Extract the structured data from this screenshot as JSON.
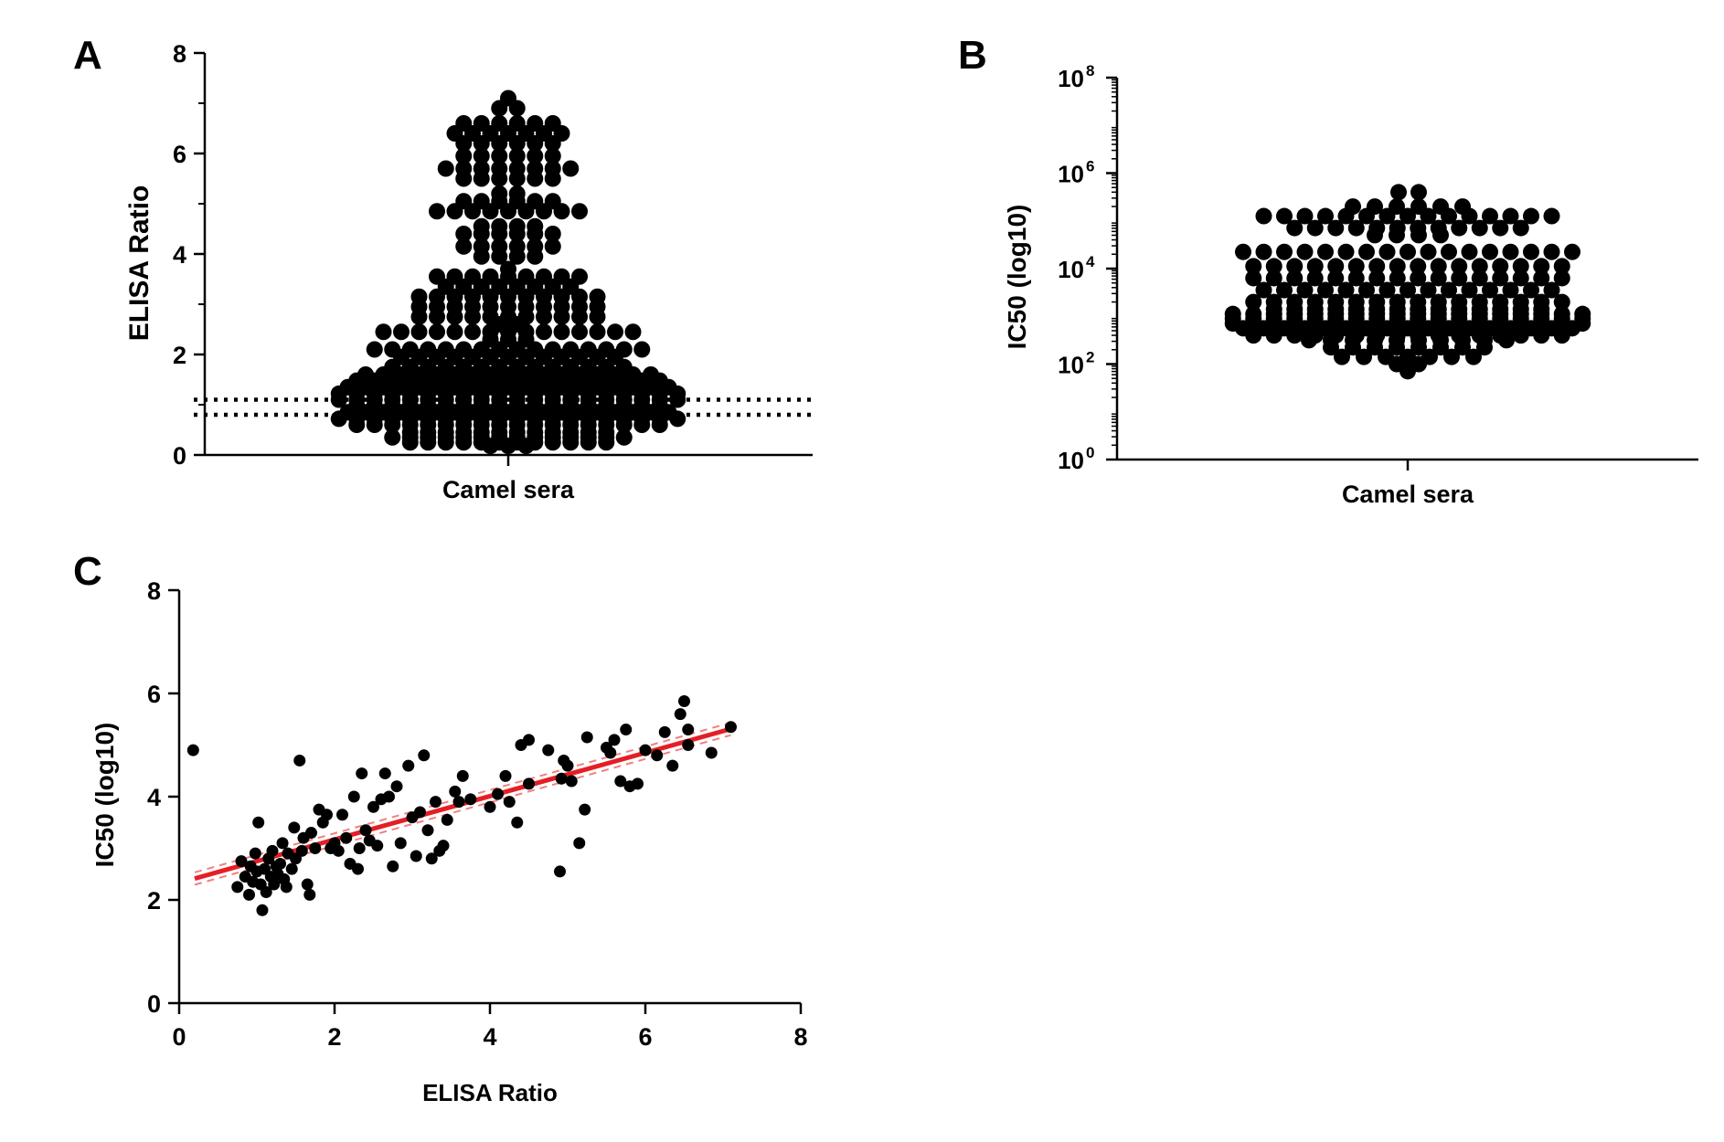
{
  "chart_data": [
    {
      "panel": "A",
      "type": "scatter",
      "subtype": "beeswarm",
      "xlabel": "Camel sera",
      "ylabel": "ELISA Ratio",
      "ylim": [
        0,
        8
      ],
      "yticks": [
        "0",
        "2",
        "4",
        "6",
        "8"
      ],
      "cutoffs": [
        0.8,
        1.1
      ],
      "rows": [
        {
          "y": 7.1,
          "n": 1
        },
        {
          "y": 6.9,
          "n": 2
        },
        {
          "y": 6.6,
          "n": 6
        },
        {
          "y": 6.4,
          "n": 7
        },
        {
          "y": 6.2,
          "n": 6
        },
        {
          "y": 5.95,
          "n": 6
        },
        {
          "y": 5.7,
          "n": 8
        },
        {
          "y": 5.5,
          "n": 6
        },
        {
          "y": 5.2,
          "n": 2
        },
        {
          "y": 5.05,
          "n": 6
        },
        {
          "y": 4.85,
          "n": 9
        },
        {
          "y": 4.55,
          "n": 4
        },
        {
          "y": 4.4,
          "n": 6
        },
        {
          "y": 4.15,
          "n": 6
        },
        {
          "y": 3.95,
          "n": 4
        },
        {
          "y": 3.7,
          "n": 1
        },
        {
          "y": 3.55,
          "n": 9
        },
        {
          "y": 3.35,
          "n": 8
        },
        {
          "y": 3.15,
          "n": 11
        },
        {
          "y": 2.95,
          "n": 11
        },
        {
          "y": 2.75,
          "n": 11
        },
        {
          "y": 2.6,
          "n": 2
        },
        {
          "y": 2.45,
          "n": 15
        },
        {
          "y": 2.3,
          "n": 3
        },
        {
          "y": 2.1,
          "n": 16
        },
        {
          "y": 1.95,
          "n": 13
        },
        {
          "y": 1.75,
          "n": 14
        },
        {
          "y": 1.6,
          "n": 17
        },
        {
          "y": 1.48,
          "n": 18
        },
        {
          "y": 1.35,
          "n": 19
        },
        {
          "y": 1.22,
          "n": 20
        },
        {
          "y": 1.1,
          "n": 20
        },
        {
          "y": 0.98,
          "n": 18
        },
        {
          "y": 0.85,
          "n": 19
        },
        {
          "y": 0.72,
          "n": 20
        },
        {
          "y": 0.6,
          "n": 18
        },
        {
          "y": 0.45,
          "n": 12
        },
        {
          "y": 0.35,
          "n": 14
        },
        {
          "y": 0.25,
          "n": 12
        },
        {
          "y": 0.18,
          "n": 3
        }
      ]
    },
    {
      "panel": "B",
      "type": "scatter",
      "subtype": "beeswarm",
      "xlabel": "Camel sera",
      "ylabel": "IC50 (log10)",
      "yscale": "log10",
      "ylim": [
        0,
        8
      ],
      "yticks": [
        {
          "base": "10",
          "exp": "0"
        },
        {
          "base": "10",
          "exp": "2"
        },
        {
          "base": "10",
          "exp": "4"
        },
        {
          "base": "10",
          "exp": "6"
        },
        {
          "base": "10",
          "exp": "8"
        }
      ],
      "rows": [
        {
          "y": 5.6,
          "n": 2
        },
        {
          "y": 5.3,
          "n": 6
        },
        {
          "y": 5.1,
          "n": 15
        },
        {
          "y": 4.85,
          "n": 12
        },
        {
          "y": 4.7,
          "n": 4
        },
        {
          "y": 4.35,
          "n": 17
        },
        {
          "y": 4.05,
          "n": 16
        },
        {
          "y": 3.8,
          "n": 16
        },
        {
          "y": 3.55,
          "n": 15
        },
        {
          "y": 3.3,
          "n": 16
        },
        {
          "y": 3.15,
          "n": 14
        },
        {
          "y": 3.05,
          "n": 18
        },
        {
          "y": 2.95,
          "n": 18
        },
        {
          "y": 2.85,
          "n": 18
        },
        {
          "y": 2.75,
          "n": 17
        },
        {
          "y": 2.6,
          "n": 16
        },
        {
          "y": 2.5,
          "n": 10
        },
        {
          "y": 2.35,
          "n": 8
        },
        {
          "y": 2.15,
          "n": 7
        },
        {
          "y": 2.0,
          "n": 2
        },
        {
          "y": 1.85,
          "n": 1
        }
      ]
    },
    {
      "panel": "C",
      "type": "scatter",
      "xlabel": "ELISA Ratio",
      "ylabel": "IC50 (log10)",
      "xlim": [
        0,
        8
      ],
      "ylim": [
        0,
        8
      ],
      "xticks": [
        "0",
        "2",
        "4",
        "6",
        "8"
      ],
      "yticks": [
        "0",
        "2",
        "4",
        "6",
        "8"
      ],
      "fit": {
        "slope": 0.42,
        "intercept": 2.33,
        "x_range": [
          0.2,
          7.1
        ],
        "color": "#e51e25"
      },
      "points": [
        [
          0.18,
          4.9
        ],
        [
          0.75,
          2.25
        ],
        [
          0.8,
          2.75
        ],
        [
          0.85,
          2.45
        ],
        [
          0.9,
          2.1
        ],
        [
          0.92,
          2.65
        ],
        [
          0.95,
          2.35
        ],
        [
          0.98,
          2.9
        ],
        [
          1.0,
          2.55
        ],
        [
          1.02,
          3.5
        ],
        [
          1.05,
          2.3
        ],
        [
          1.07,
          1.8
        ],
        [
          1.1,
          2.6
        ],
        [
          1.12,
          2.15
        ],
        [
          1.15,
          2.8
        ],
        [
          1.18,
          2.45
        ],
        [
          1.2,
          2.95
        ],
        [
          1.22,
          2.3
        ],
        [
          1.25,
          2.65
        ],
        [
          1.27,
          2.5
        ],
        [
          1.3,
          2.7
        ],
        [
          1.33,
          3.1
        ],
        [
          1.35,
          2.4
        ],
        [
          1.38,
          2.25
        ],
        [
          1.4,
          2.9
        ],
        [
          1.45,
          2.6
        ],
        [
          1.48,
          3.4
        ],
        [
          1.5,
          2.8
        ],
        [
          1.55,
          4.7
        ],
        [
          1.58,
          2.95
        ],
        [
          1.6,
          3.2
        ],
        [
          1.65,
          2.3
        ],
        [
          1.68,
          2.1
        ],
        [
          1.7,
          3.3
        ],
        [
          1.75,
          3.0
        ],
        [
          1.8,
          3.75
        ],
        [
          1.85,
          3.5
        ],
        [
          1.9,
          3.65
        ],
        [
          1.95,
          3.0
        ],
        [
          2.0,
          3.1
        ],
        [
          2.05,
          2.95
        ],
        [
          2.1,
          3.65
        ],
        [
          2.15,
          3.2
        ],
        [
          2.2,
          2.7
        ],
        [
          2.25,
          4.0
        ],
        [
          2.3,
          2.6
        ],
        [
          2.32,
          3.0
        ],
        [
          2.35,
          4.45
        ],
        [
          2.4,
          3.35
        ],
        [
          2.45,
          3.15
        ],
        [
          2.5,
          3.8
        ],
        [
          2.55,
          3.05
        ],
        [
          2.6,
          3.95
        ],
        [
          2.65,
          4.45
        ],
        [
          2.7,
          4.0
        ],
        [
          2.75,
          2.65
        ],
        [
          2.8,
          4.2
        ],
        [
          2.85,
          3.1
        ],
        [
          2.95,
          4.6
        ],
        [
          3.0,
          3.6
        ],
        [
          3.05,
          2.85
        ],
        [
          3.1,
          3.7
        ],
        [
          3.15,
          4.8
        ],
        [
          3.2,
          3.35
        ],
        [
          3.25,
          2.8
        ],
        [
          3.3,
          3.9
        ],
        [
          3.35,
          2.95
        ],
        [
          3.4,
          3.05
        ],
        [
          3.45,
          3.55
        ],
        [
          3.55,
          4.1
        ],
        [
          3.6,
          3.9
        ],
        [
          3.65,
          4.4
        ],
        [
          3.75,
          3.95
        ],
        [
          4.0,
          3.8
        ],
        [
          4.1,
          4.05
        ],
        [
          4.2,
          4.4
        ],
        [
          4.25,
          3.9
        ],
        [
          4.35,
          3.5
        ],
        [
          4.4,
          5.0
        ],
        [
          4.5,
          5.1
        ],
        [
          4.5,
          4.25
        ],
        [
          4.75,
          4.9
        ],
        [
          4.9,
          2.55
        ],
        [
          4.92,
          4.35
        ],
        [
          4.95,
          4.7
        ],
        [
          5.0,
          4.6
        ],
        [
          5.05,
          4.3
        ],
        [
          5.15,
          3.1
        ],
        [
          5.22,
          3.75
        ],
        [
          5.25,
          5.15
        ],
        [
          5.5,
          4.95
        ],
        [
          5.55,
          4.85
        ],
        [
          5.6,
          5.1
        ],
        [
          5.68,
          4.3
        ],
        [
          5.75,
          5.3
        ],
        [
          5.8,
          4.2
        ],
        [
          5.9,
          4.25
        ],
        [
          6.0,
          4.9
        ],
        [
          6.15,
          4.8
        ],
        [
          6.25,
          5.25
        ],
        [
          6.35,
          4.6
        ],
        [
          6.45,
          5.6
        ],
        [
          6.5,
          5.85
        ],
        [
          6.55,
          5.3
        ],
        [
          6.55,
          5.0
        ],
        [
          6.85,
          4.85
        ],
        [
          7.1,
          5.35
        ]
      ]
    }
  ],
  "panel_labels": {
    "a": "A",
    "b": "B",
    "c": "C"
  }
}
